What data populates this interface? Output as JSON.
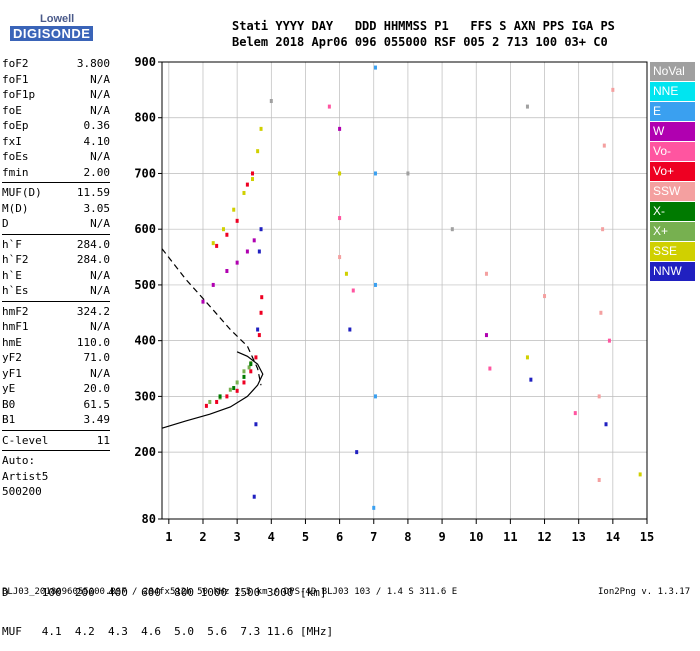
{
  "logo": {
    "top": "Lowell",
    "bottom": "DIGISONDE"
  },
  "header": {
    "row1": "Stati YYYY DAY   DDD HHMMSS P1   FFS S AXN PPS IGA PS",
    "row2": "Belem 2018 Apr06 096 055000 RSF 005 2 713 100 03+ C0"
  },
  "params": [
    {
      "k": "foF2",
      "v": "3.800"
    },
    {
      "k": "foF1",
      "v": "N/A"
    },
    {
      "k": "foF1p",
      "v": "N/A"
    },
    {
      "k": "foE",
      "v": "N/A"
    },
    {
      "k": "foEp",
      "v": "0.36"
    },
    {
      "k": "fxI",
      "v": "4.10"
    },
    {
      "k": "foEs",
      "v": "N/A"
    },
    {
      "k": "fmin",
      "v": "2.00"
    },
    {
      "k": "MUF(D)",
      "v": "11.59",
      "sep": true
    },
    {
      "k": "M(D)",
      "v": "3.05"
    },
    {
      "k": "D",
      "v": "N/A"
    },
    {
      "k": "h`F",
      "v": "284.0",
      "sep": true
    },
    {
      "k": "h`F2",
      "v": "284.0"
    },
    {
      "k": "h`E",
      "v": "N/A"
    },
    {
      "k": "h`Es",
      "v": "N/A"
    },
    {
      "k": "hmF2",
      "v": "324.2",
      "sep": true
    },
    {
      "k": "hmF1",
      "v": "N/A"
    },
    {
      "k": "hmE",
      "v": "110.0"
    },
    {
      "k": "yF2",
      "v": "71.0"
    },
    {
      "k": "yF1",
      "v": "N/A"
    },
    {
      "k": "yE",
      "v": "20.0"
    },
    {
      "k": "B0",
      "v": "61.5"
    },
    {
      "k": "B1",
      "v": "3.49"
    },
    {
      "k": "C-level",
      "v": "11",
      "sep": true
    },
    {
      "k": "Auto:",
      "v": "",
      "sep": true
    },
    {
      "k": "Artist5",
      "v": ""
    },
    {
      "k": "500200",
      "v": ""
    }
  ],
  "legend": [
    {
      "label": "NoVal",
      "color": "#a0a0a0"
    },
    {
      "label": "NNE",
      "color": "#00e5f0"
    },
    {
      "label": "E",
      "color": "#3aa0f0"
    },
    {
      "label": "W",
      "color": "#b000b0"
    },
    {
      "label": "Vo-",
      "color": "#ff55a0"
    },
    {
      "label": "Vo+",
      "color": "#ee0022"
    },
    {
      "label": "SSW",
      "color": "#f4a0a0"
    },
    {
      "label": "X-",
      "color": "#007a00"
    },
    {
      "label": "X+",
      "color": "#77b050"
    },
    {
      "label": "SSE",
      "color": "#d0d000"
    },
    {
      "label": "NNW",
      "color": "#2020c0"
    }
  ],
  "bottom_table": {
    "row1": "D     100  200  400  600  800 1000 1500 3000 [km]",
    "row2": "MUF   4.1  4.2  4.3  4.6  5.0  5.6  7.3 11.6 [MHz]"
  },
  "footer": {
    "left": "BLJ03_2018096055000.RSF / 284fx512h 50 kHz 2.5 km / DPS-4D BLJ03 103 / 1.4 S 311.6 E",
    "right": "Ion2Png v. 1.3.17"
  },
  "chart_data": {
    "type": "scatter",
    "x_ticks": [
      1,
      2,
      3,
      4,
      5,
      6,
      7,
      8,
      9,
      10,
      11,
      12,
      13,
      14,
      15
    ],
    "y_ticks": [
      80,
      200,
      300,
      400,
      500,
      600,
      700,
      800,
      900
    ],
    "xlim": [
      0.8,
      15
    ],
    "ylim": [
      80,
      900
    ],
    "series": [
      {
        "name": "Vo+",
        "color": "#ee0022",
        "points": [
          [
            2.1,
            283
          ],
          [
            2.4,
            290
          ],
          [
            2.7,
            300
          ],
          [
            3.0,
            310
          ],
          [
            3.2,
            325
          ],
          [
            3.4,
            345
          ],
          [
            3.55,
            370
          ],
          [
            3.65,
            410
          ],
          [
            3.7,
            450
          ],
          [
            3.72,
            478
          ],
          [
            2.4,
            570
          ],
          [
            2.7,
            590
          ],
          [
            3.0,
            615
          ],
          [
            3.3,
            680
          ],
          [
            3.45,
            700
          ]
        ]
      },
      {
        "name": "X+",
        "color": "#77b050",
        "points": [
          [
            2.2,
            290
          ],
          [
            2.5,
            298
          ],
          [
            2.8,
            312
          ],
          [
            3.0,
            325
          ],
          [
            3.2,
            345
          ],
          [
            3.4,
            360
          ],
          [
            3.35,
            352
          ]
        ]
      },
      {
        "name": "X-",
        "color": "#007a00",
        "points": [
          [
            2.5,
            300
          ],
          [
            2.9,
            315
          ],
          [
            3.2,
            335
          ],
          [
            3.4,
            358
          ]
        ]
      },
      {
        "name": "SSE",
        "color": "#d0d000",
        "points": [
          [
            2.3,
            575
          ],
          [
            2.6,
            600
          ],
          [
            2.9,
            635
          ],
          [
            3.2,
            665
          ],
          [
            3.45,
            690
          ],
          [
            3.6,
            740
          ],
          [
            3.7,
            780
          ],
          [
            6.0,
            700
          ],
          [
            6.2,
            520
          ],
          [
            11.5,
            370
          ],
          [
            14.8,
            160
          ]
        ]
      },
      {
        "name": "W",
        "color": "#b000b0",
        "points": [
          [
            2.0,
            470
          ],
          [
            2.3,
            500
          ],
          [
            2.7,
            525
          ],
          [
            3.0,
            540
          ],
          [
            3.3,
            560
          ],
          [
            3.5,
            580
          ],
          [
            6.0,
            780
          ],
          [
            10.3,
            410
          ]
        ]
      },
      {
        "name": "NNW",
        "color": "#2020c0",
        "points": [
          [
            3.5,
            120
          ],
          [
            3.55,
            250
          ],
          [
            3.6,
            420
          ],
          [
            3.65,
            560
          ],
          [
            3.7,
            600
          ],
          [
            6.5,
            200
          ],
          [
            6.3,
            420
          ],
          [
            11.6,
            330
          ],
          [
            13.8,
            250
          ]
        ]
      },
      {
        "name": "E",
        "color": "#3aa0f0",
        "points": [
          [
            7.0,
            100
          ],
          [
            7.05,
            300
          ],
          [
            7.05,
            500
          ],
          [
            7.05,
            700
          ],
          [
            7.05,
            890
          ]
        ]
      },
      {
        "name": "SSW",
        "color": "#f4a0a0",
        "points": [
          [
            13.6,
            150
          ],
          [
            13.6,
            300
          ],
          [
            13.65,
            450
          ],
          [
            13.7,
            600
          ],
          [
            13.75,
            750
          ],
          [
            14.0,
            850
          ],
          [
            6.0,
            550
          ],
          [
            10.3,
            520
          ],
          [
            12.0,
            480
          ]
        ]
      },
      {
        "name": "Vo-",
        "color": "#ff55a0",
        "points": [
          [
            5.7,
            820
          ],
          [
            6.0,
            620
          ],
          [
            6.4,
            490
          ],
          [
            10.4,
            350
          ],
          [
            12.9,
            270
          ],
          [
            13.9,
            400
          ]
        ]
      },
      {
        "name": "NoVal",
        "color": "#a0a0a0",
        "points": [
          [
            4.0,
            830
          ],
          [
            8.0,
            700
          ],
          [
            9.3,
            600
          ],
          [
            11.5,
            820
          ]
        ]
      }
    ],
    "virtual_height_trace": [
      [
        0.8,
        565
      ],
      [
        1.5,
        510
      ],
      [
        2.2,
        462
      ],
      [
        2.8,
        420
      ],
      [
        3.3,
        390
      ],
      [
        3.6,
        350
      ],
      [
        3.7,
        320
      ]
    ],
    "profile_curve": [
      [
        0.8,
        243
      ],
      [
        1.5,
        256
      ],
      [
        2.2,
        268
      ],
      [
        2.8,
        281
      ],
      [
        3.3,
        300
      ],
      [
        3.6,
        320
      ],
      [
        3.75,
        340
      ],
      [
        3.6,
        358
      ],
      [
        3.3,
        372
      ],
      [
        3.0,
        380
      ]
    ]
  }
}
